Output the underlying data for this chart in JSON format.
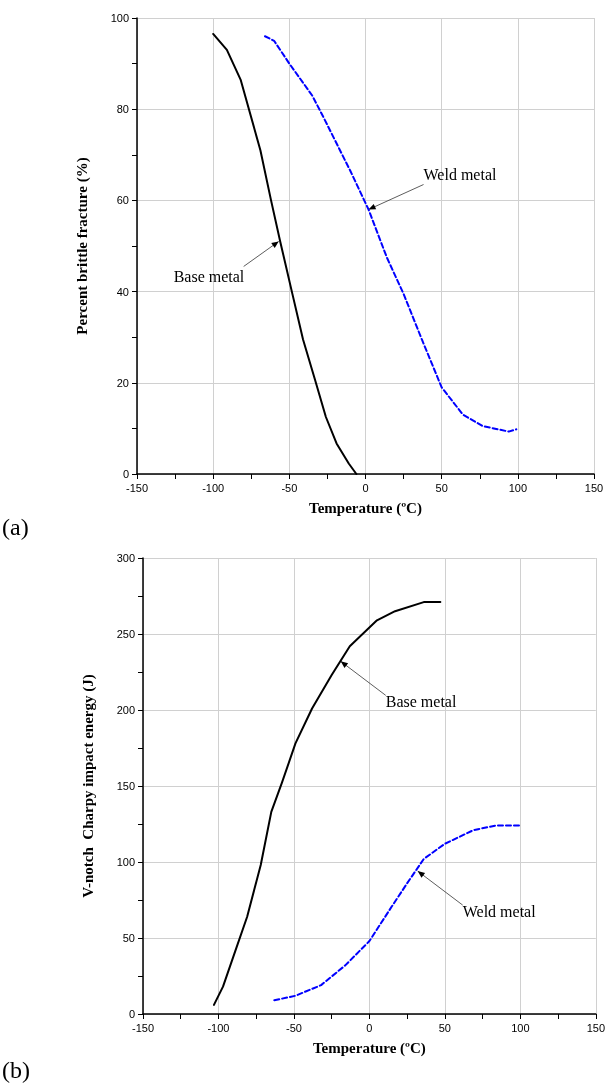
{
  "chart_data": [
    {
      "type": "line",
      "xlabel": "Temperature (ºC)",
      "ylabel": "Percent brittle fracture (%)",
      "xlim": [
        -150,
        150
      ],
      "xticks": [
        -150,
        -100,
        -50,
        0,
        50,
        100,
        150
      ],
      "ylim": [
        0,
        100
      ],
      "yticks": [
        0,
        20,
        40,
        60,
        80,
        100
      ],
      "grid": true,
      "marker": "none",
      "series": [
        {
          "x": [
            -100,
            -91,
            -82,
            -69,
            -62,
            -56,
            -48,
            -41,
            -33,
            -26,
            -19,
            -11,
            -6
          ],
          "values": [
            96.5,
            93,
            86.5,
            71,
            60,
            51,
            39.5,
            29.5,
            20.5,
            12.5,
            6.7,
            2.3,
            0
          ],
          "color": "#000000",
          "line_style": "solid"
        },
        {
          "x": [
            -66,
            -60,
            -50,
            -35,
            -28,
            -10,
            2,
            14,
            25,
            37,
            50,
            64,
            77,
            94,
            99
          ],
          "values": [
            96,
            95,
            90,
            83,
            78.5,
            66.5,
            58,
            47.5,
            39.5,
            29.5,
            19,
            13,
            10.5,
            9.3,
            9.8
          ],
          "color": "#0000ff",
          "line_style": "dashed"
        }
      ],
      "annotations": [
        {
          "text": "Base metal",
          "x": -57,
          "y": 51
        },
        {
          "text": "Weld metal",
          "x": 2,
          "y": 58
        },
        "(a)"
      ]
    },
    {
      "type": "line",
      "xlabel": "Temperature (ºC)",
      "ylabel": "V-notch  Charpy impact energy (J)",
      "xlim": [
        -150,
        150
      ],
      "xticks": [
        -150,
        -100,
        -50,
        0,
        50,
        100,
        150
      ],
      "ylim": [
        0,
        300
      ],
      "yticks": [
        0,
        50,
        100,
        150,
        200,
        250,
        300
      ],
      "grid": true,
      "marker": "none",
      "series": [
        {
          "x": [
            -103,
            -97,
            -89,
            -81,
            -72,
            -65,
            -58,
            -49,
            -38,
            -25,
            -13,
            5,
            17,
            36,
            47
          ],
          "values": [
            6,
            18,
            41,
            64,
            98,
            133,
            152,
            178,
            201,
            223,
            242,
            259,
            265,
            271,
            271
          ],
          "color": "#000000",
          "line_style": "solid"
        },
        {
          "x": [
            -63,
            -49,
            -32,
            -16,
            0,
            15,
            25,
            36,
            50,
            69,
            84,
            101
          ],
          "values": [
            9,
            12,
            19,
            32,
            48,
            71,
            86,
            102,
            112,
            121,
            124,
            124
          ],
          "color": "#0000ff",
          "line_style": "dashed"
        }
      ],
      "annotations": [
        {
          "text": "Base metal",
          "x": -19,
          "y": 232
        },
        {
          "text": "Weld metal",
          "x": 32,
          "y": 94
        },
        "(b)"
      ]
    }
  ]
}
